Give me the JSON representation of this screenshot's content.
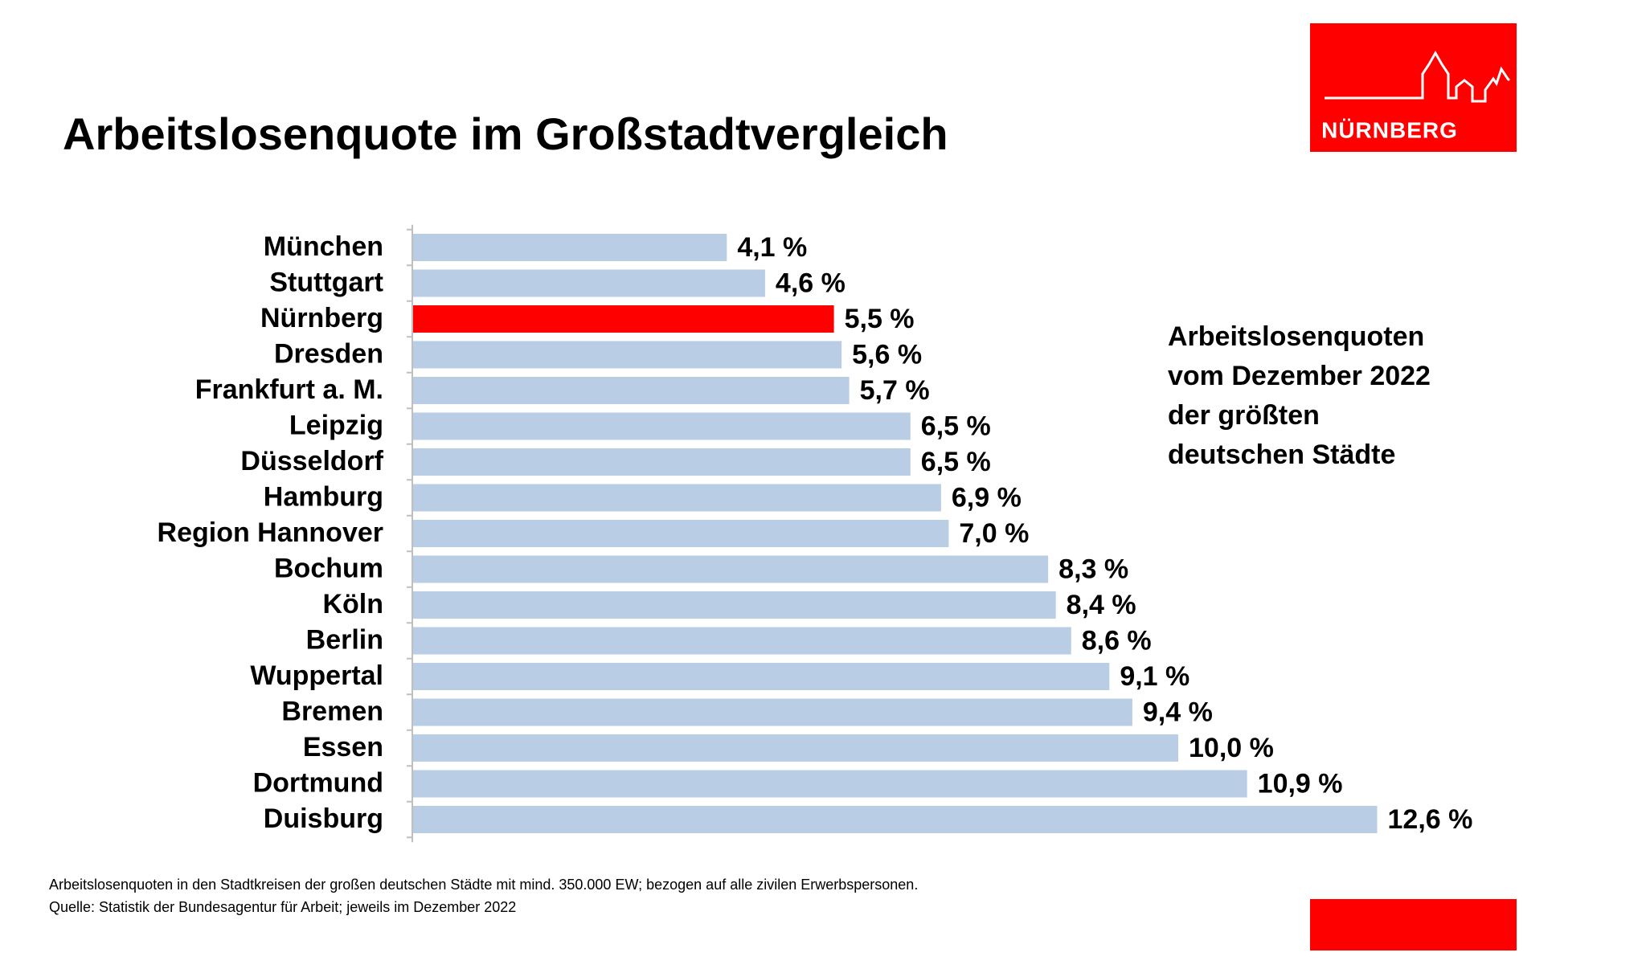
{
  "logo": {
    "text": "NÜRNBERG"
  },
  "chart_data": {
    "type": "bar",
    "orientation": "horizontal",
    "title": "Arbeitslosenquote im Großstadtvergleich",
    "annotation": [
      "Arbeitslosenquoten",
      "vom Dezember 2022",
      "der größten",
      "deutschen Städte"
    ],
    "footnotes": [
      "Arbeitslosenquoten in den Stadtkreisen der großen deutschen Städte mit mind. 350.000 EW; bezogen auf alle zivilen Erwerbspersonen.",
      "Quelle: Statistik der Bundesagentur für Arbeit; jeweils im Dezember 2022"
    ],
    "categories": [
      "München",
      "Stuttgart",
      "Nürnberg",
      "Dresden",
      "Frankfurt a. M.",
      "Leipzig",
      "Düsseldorf",
      "Hamburg",
      "Region Hannover",
      "Bochum",
      "Köln",
      "Berlin",
      "Wuppertal",
      "Bremen",
      "Essen",
      "Dortmund",
      "Duisburg"
    ],
    "values": [
      4.1,
      4.6,
      5.5,
      5.6,
      5.7,
      6.5,
      6.5,
      6.9,
      7.0,
      8.3,
      8.4,
      8.6,
      9.1,
      9.4,
      10.0,
      10.9,
      12.6
    ],
    "value_labels": [
      "4,1 %",
      "4,6 %",
      "5,5 %",
      "5,6 %",
      "5,7 %",
      "6,5 %",
      "6,5 %",
      "6,9 %",
      "7,0 %",
      "8,3 %",
      "8,4 %",
      "8,6 %",
      "9,1 %",
      "9,4 %",
      "10,0 %",
      "10,9 %",
      "12,6 %"
    ],
    "colors": [
      "#b9cde5",
      "#b9cde5",
      "#ff0000",
      "#b9cde5",
      "#b9cde5",
      "#b9cde5",
      "#b9cde5",
      "#b9cde5",
      "#b9cde5",
      "#b9cde5",
      "#b9cde5",
      "#b9cde5",
      "#b9cde5",
      "#b9cde5",
      "#b9cde5",
      "#b9cde5",
      "#b9cde5"
    ]
  }
}
